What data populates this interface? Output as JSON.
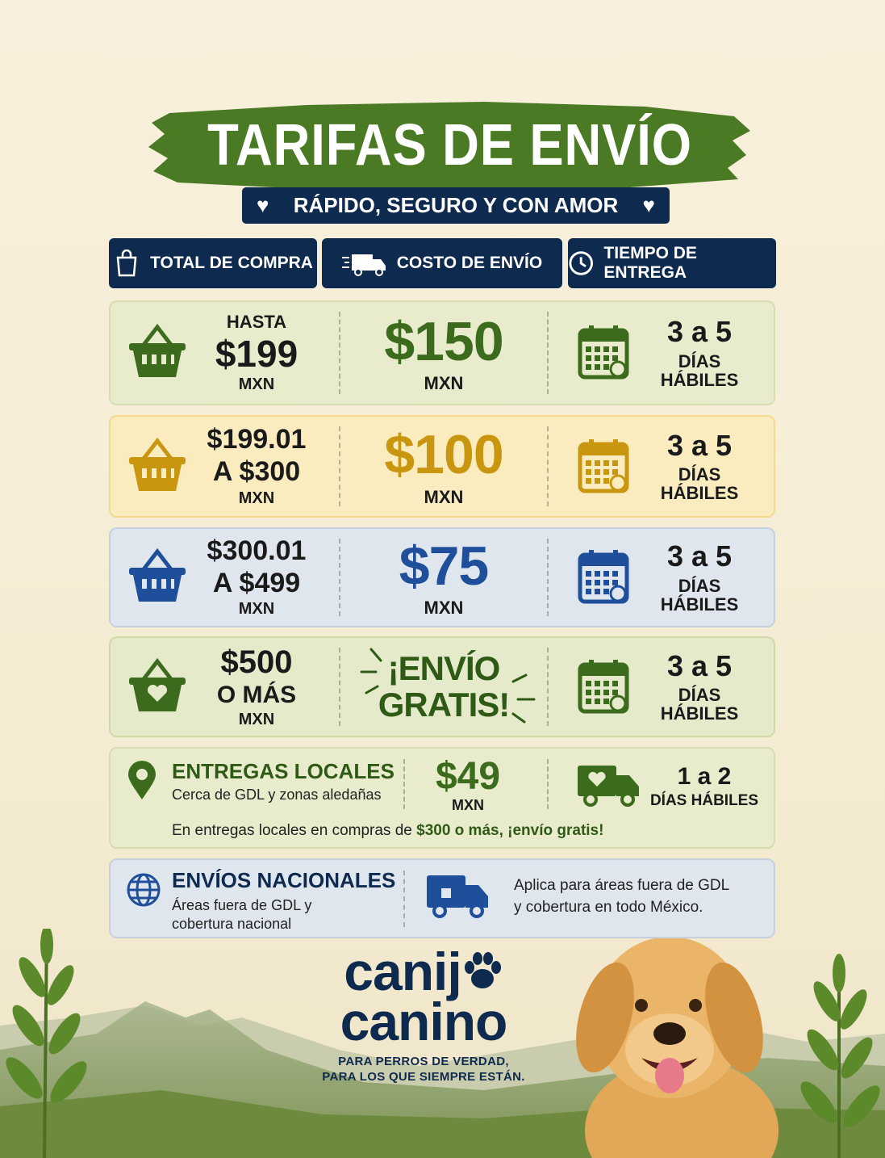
{
  "header": {
    "title": "TARIFAS DE ENVÍO",
    "subtitle": "RÁPIDO, SEGURO Y CON AMOR"
  },
  "columns": [
    "TOTAL DE COMPRA",
    "COSTO DE ENVÍO",
    "TIEMPO DE ENTREGA"
  ],
  "rows": [
    {
      "purchase": [
        "HASTA",
        "$199",
        "MXN"
      ],
      "cost": [
        "$150"
      ],
      "cost_unit": "MXN",
      "time": "3 a 5",
      "time_unit": "DÍAS HÁBILES"
    },
    {
      "purchase": [
        "$199.01",
        "A $300",
        "MXN"
      ],
      "cost": [
        "$100"
      ],
      "cost_unit": "MXN",
      "time": "3 a 5",
      "time_unit": "DÍAS HÁBILES"
    },
    {
      "purchase": [
        "$300.01",
        "A $499",
        "MXN"
      ],
      "cost": [
        "$75"
      ],
      "cost_unit": "MXN",
      "time": "3 a 5",
      "time_unit": "DÍAS HÁBILES"
    },
    {
      "purchase": [
        "$500",
        "O MÁS",
        "MXN"
      ],
      "cost": [
        "¡ENVÍO",
        "GRATIS!"
      ],
      "time": "3 a 5",
      "time_unit": "DÍAS HÁBILES"
    }
  ],
  "local": {
    "title": "ENTREGAS LOCALES",
    "description": "Cerca de GDL y zonas aledañas",
    "cost": "$49",
    "cost_unit": "MXN",
    "time": "1 a 2",
    "time_unit": "DÍAS HÁBILES",
    "note": "En entregas locales en compras de",
    "note_highlight": "$300 o más, ¡envío gratis!"
  },
  "national": {
    "title": "ENVÍOS NACIONALES",
    "description": [
      "Áreas fuera de GDL y",
      "cobertura nacional"
    ],
    "note": [
      "Aplica para áreas fuera de GDL",
      "y cobertura en todo México."
    ]
  },
  "brand": {
    "name": [
      "canij",
      "canino"
    ],
    "tagline": [
      "PARA PERROS DE VERDAD,",
      "PARA LOS QUE SIEMPRE ESTÁN."
    ]
  }
}
